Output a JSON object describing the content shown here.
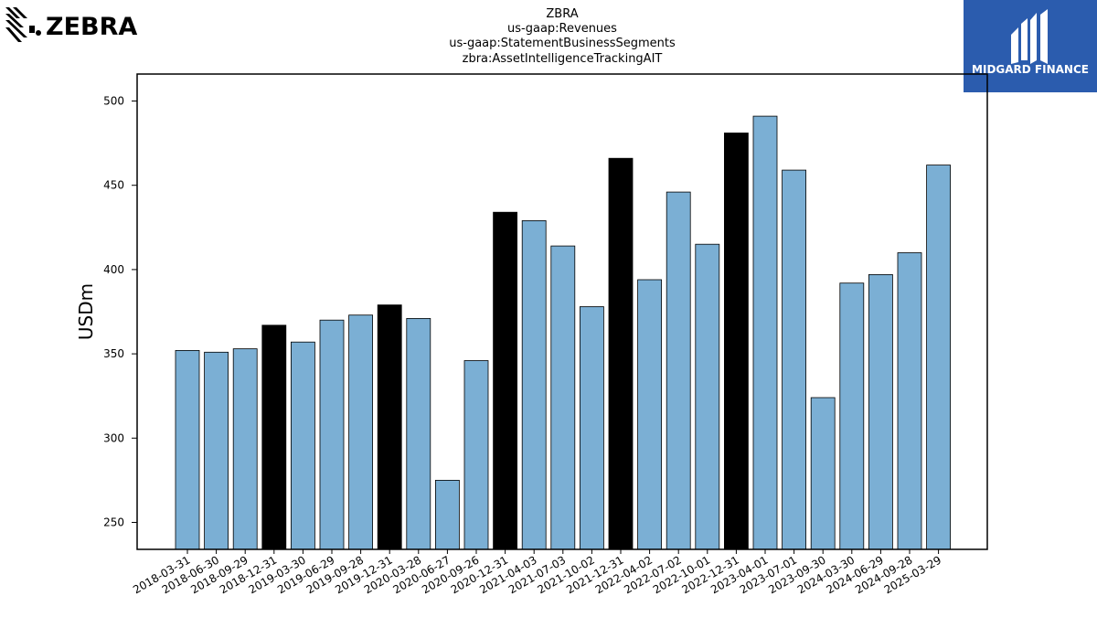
{
  "header": {
    "title_lines": [
      "ZBRA",
      "us-gaap:Revenues",
      "us-gaap:StatementBusinessSegments",
      "zbra:AssetIntelligenceTrackingAIT"
    ]
  },
  "logos": {
    "left_text": "ZEBRA",
    "right_text": "MIDGARD FINANCE"
  },
  "colors": {
    "bar_default": "#7bafd4",
    "bar_highlight": "#000000",
    "logo_right_bg": "#2b5cae"
  },
  "chart_data": {
    "type": "bar",
    "ylabel": "USDm",
    "xlabel": "",
    "ylim": [
      234,
      516
    ],
    "yticks": [
      250,
      300,
      350,
      400,
      450,
      500
    ],
    "grid": false,
    "categories": [
      "2018-03-31",
      "2018-06-30",
      "2018-09-29",
      "2018-12-31",
      "2019-03-30",
      "2019-06-29",
      "2019-09-28",
      "2019-12-31",
      "2020-03-28",
      "2020-06-27",
      "2020-09-26",
      "2020-12-31",
      "2021-04-03",
      "2021-07-03",
      "2021-10-02",
      "2021-12-31",
      "2022-04-02",
      "2022-07-02",
      "2022-10-01",
      "2022-12-31",
      "2023-04-01",
      "2023-07-01",
      "2023-09-30",
      "2024-03-30",
      "2024-06-29",
      "2024-09-28",
      "2025-03-29"
    ],
    "values": [
      352,
      351,
      353,
      367,
      357,
      370,
      373,
      379,
      371,
      275,
      346,
      434,
      429,
      414,
      378,
      466,
      394,
      446,
      415,
      481,
      491,
      459,
      324,
      392,
      397,
      410,
      462
    ],
    "highlighted": [
      false,
      false,
      false,
      true,
      false,
      false,
      false,
      true,
      false,
      false,
      false,
      true,
      false,
      false,
      false,
      true,
      false,
      false,
      false,
      true,
      false,
      false,
      false,
      false,
      false,
      false,
      false
    ]
  }
}
